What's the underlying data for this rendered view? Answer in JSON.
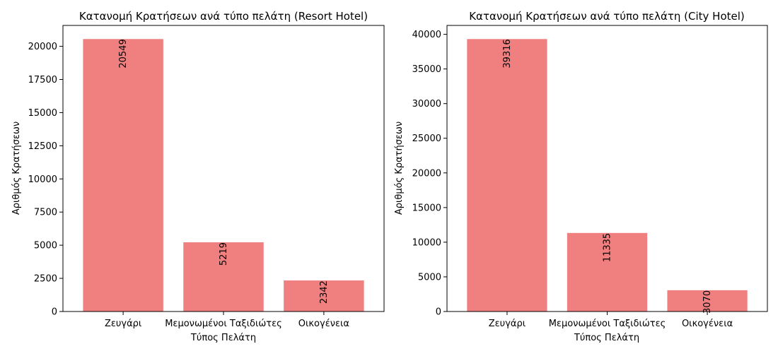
{
  "chart_data": [
    {
      "type": "bar",
      "title": "Κατανομή Κρατήσεων ανά τύπο πελάτη (Resort Hotel)",
      "xlabel": "Τύπος Πελάτη",
      "ylabel": "Αριθμός Κρατήσεων",
      "categories": [
        "Ζευγάρι",
        "Μεμονωμένοι Ταξιδιώτες",
        "Οικογένεια"
      ],
      "values": [
        20549,
        5219,
        2342
      ],
      "ylim": [
        0,
        21576
      ],
      "yticks": [
        0,
        2500,
        5000,
        7500,
        10000,
        12500,
        15000,
        17500,
        20000
      ],
      "color": "#f08080",
      "grid": false,
      "legend": "none"
    },
    {
      "type": "bar",
      "title": "Κατανομή Κρατήσεων ανά τύπο πελάτη (City Hotel)",
      "xlabel": "Τύπος Πελάτη",
      "ylabel": "Αριθμός Κρατήσεων",
      "categories": [
        "Ζευγάρι",
        "Μεμονωμένοι Ταξιδιώτες",
        "Οικογένεια"
      ],
      "values": [
        39316,
        11335,
        3070
      ],
      "ylim": [
        0,
        41282
      ],
      "yticks": [
        0,
        5000,
        10000,
        15000,
        20000,
        25000,
        30000,
        35000,
        40000
      ],
      "color": "#f08080",
      "grid": false,
      "legend": "none"
    }
  ]
}
